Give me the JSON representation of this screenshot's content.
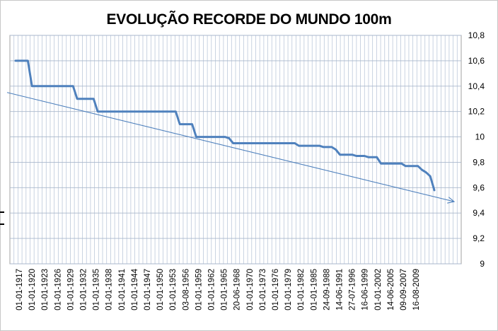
{
  "chart_data": {
    "type": "line",
    "title": "EVOLUÇÃO RECORDE DO MUNDO 100m",
    "xlabel": "",
    "ylabel": "",
    "ylim": [
      9,
      10.8
    ],
    "yticks": [
      "9",
      "9,2",
      "9,4",
      "9,6",
      "9,8",
      "10",
      "10,2",
      "10,4",
      "10,6",
      "10,8"
    ],
    "y_axis_side": "right",
    "grid": true,
    "legend": "none",
    "x_tick_labels": [
      "01-01-1917",
      "01-01-1920",
      "01-01-1923",
      "01-01-1926",
      "01-01-1929",
      "01-01-1932",
      "01-01-1935",
      "01-01-1938",
      "01-01-1941",
      "01-01-1944",
      "01-01-1947",
      "01-01-1950",
      "01-01-1953",
      "03-08-1956",
      "01-01-1959",
      "01-01-1962",
      "01-01-1965",
      "20-06-1968",
      "01-01-1970",
      "01-01-1973",
      "01-01-1976",
      "01-01-1979",
      "01-01-1982",
      "01-01-1985",
      "24-09-1988",
      "14-06-1991",
      "27-07-1996",
      "16-06-1999",
      "01-01-2002",
      "14-06-2005",
      "09-09-2007",
      "16-08-2009"
    ],
    "series": [
      {
        "color": "#4f81bd",
        "values": [
          10.6,
          10.6,
          10.6,
          10.6,
          10.4,
          10.4,
          10.4,
          10.4,
          10.4,
          10.4,
          10.4,
          10.4,
          10.4,
          10.4,
          10.4,
          10.3,
          10.3,
          10.3,
          10.3,
          10.3,
          10.2,
          10.2,
          10.2,
          10.2,
          10.2,
          10.2,
          10.2,
          10.2,
          10.2,
          10.2,
          10.2,
          10.2,
          10.2,
          10.2,
          10.2,
          10.2,
          10.2,
          10.2,
          10.2,
          10.2,
          10.1,
          10.1,
          10.1,
          10.1,
          10.0,
          10.0,
          10.0,
          10.0,
          10.0,
          10.0,
          10.0,
          10.0,
          9.99,
          9.95,
          9.95,
          9.95,
          9.95,
          9.95,
          9.95,
          9.95,
          9.95,
          9.95,
          9.95,
          9.95,
          9.95,
          9.95,
          9.95,
          9.95,
          9.95,
          9.93,
          9.93,
          9.93,
          9.93,
          9.93,
          9.93,
          9.92,
          9.92,
          9.92,
          9.9,
          9.86,
          9.86,
          9.86,
          9.86,
          9.85,
          9.85,
          9.85,
          9.84,
          9.84,
          9.84,
          9.79,
          9.79,
          9.79,
          9.79,
          9.79,
          9.79,
          9.77,
          9.77,
          9.77,
          9.77,
          9.74,
          9.72,
          9.69,
          9.58
        ]
      }
    ],
    "trendline": {
      "color": "#4f81bd",
      "start_y": 10.35,
      "end_y": 9.49
    }
  }
}
